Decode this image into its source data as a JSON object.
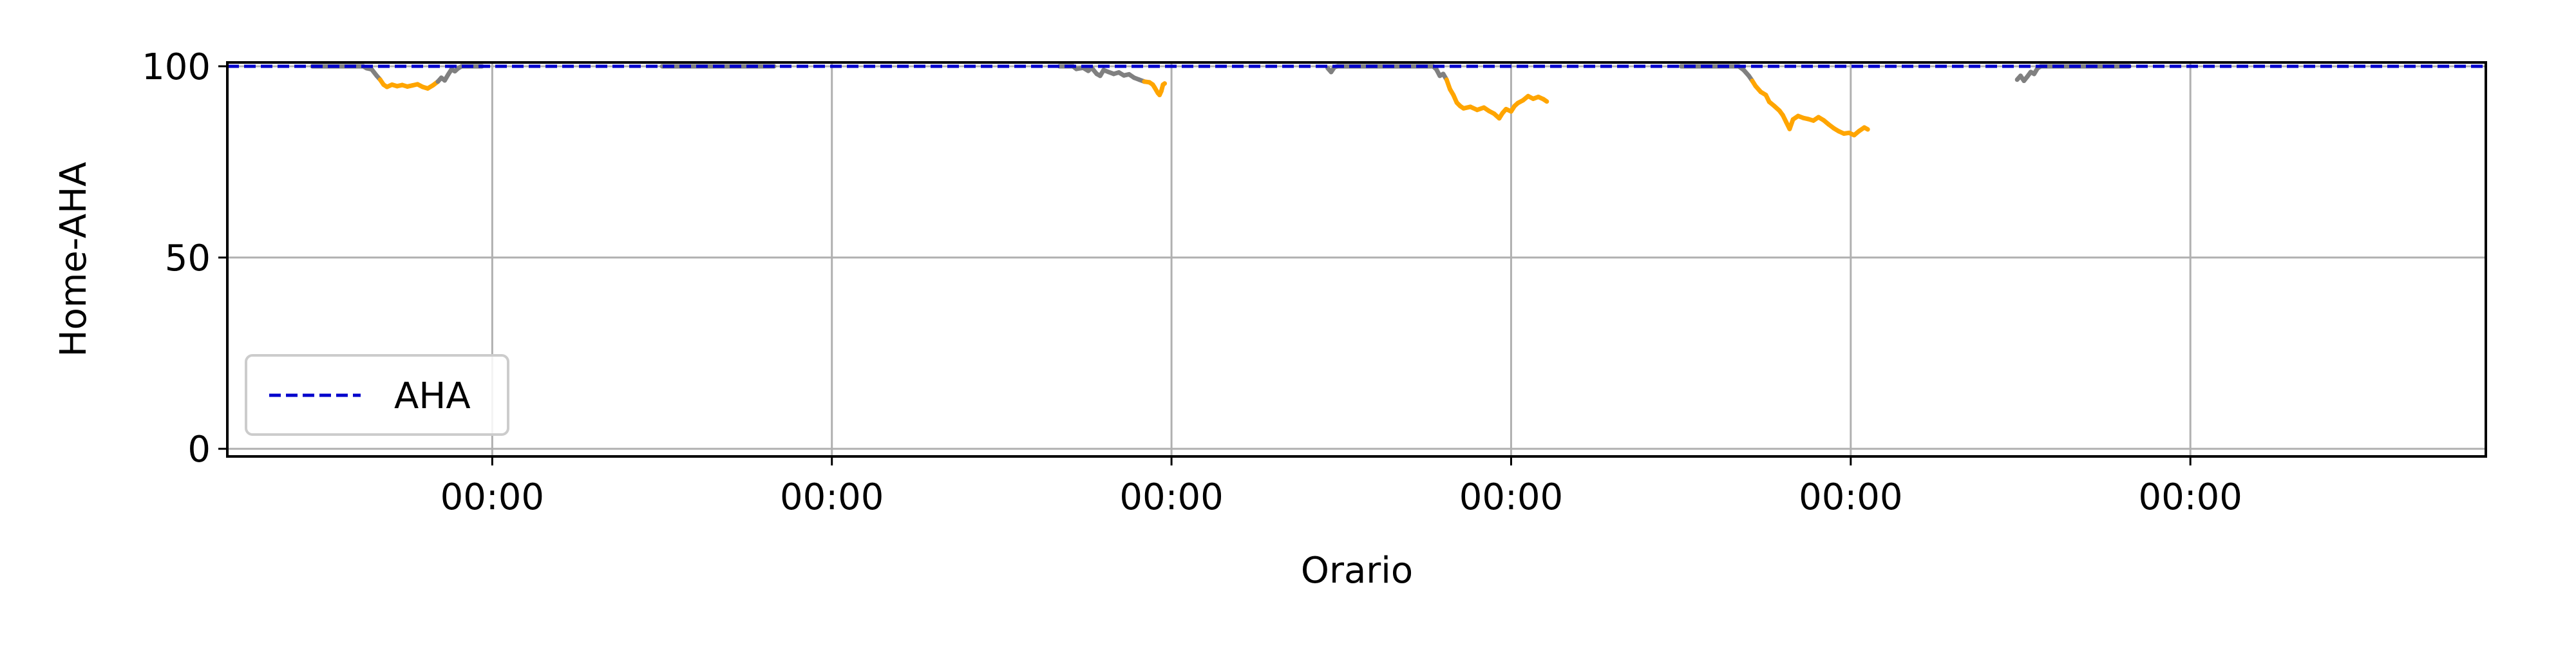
{
  "chart_data": {
    "type": "line",
    "title": "",
    "xlabel": "Orario",
    "ylabel": "Home-AHA",
    "ylim": [
      -2,
      101
    ],
    "xlim": [
      -0.78,
      5.87
    ],
    "yticks": [
      0,
      50,
      100
    ],
    "xticks": [
      0,
      1,
      2,
      3,
      4,
      5
    ],
    "xtick_labels": [
      "00:00",
      "00:00",
      "00:00",
      "00:00",
      "00:00",
      "00:00"
    ],
    "grid": true,
    "legend": {
      "location": "lower-left",
      "entries": [
        "AHA"
      ]
    },
    "colors": {
      "reference": "#0000cc",
      "above_threshold": "#808080",
      "below_threshold": "#ffa500",
      "grid": "#b0b0b0"
    },
    "reference_line": {
      "name": "AHA",
      "y": 100,
      "style": "dashed"
    },
    "color_threshold": 96,
    "series": [
      {
        "points": [
          [
            -0.53,
            100
          ],
          [
            -0.38,
            100
          ],
          [
            -0.37,
            99.5
          ],
          [
            -0.355,
            99.2
          ],
          [
            -0.34,
            97.5
          ],
          [
            -0.33,
            96.5
          ],
          [
            -0.32,
            95.2
          ],
          [
            -0.31,
            94.6
          ],
          [
            -0.295,
            95.2
          ],
          [
            -0.28,
            94.8
          ],
          [
            -0.265,
            95.1
          ],
          [
            -0.25,
            94.7
          ],
          [
            -0.235,
            95.0
          ],
          [
            -0.22,
            95.3
          ],
          [
            -0.205,
            94.6
          ],
          [
            -0.19,
            94.2
          ],
          [
            -0.175,
            95.0
          ],
          [
            -0.16,
            96.0
          ],
          [
            -0.15,
            97.0
          ],
          [
            -0.14,
            96.3
          ],
          [
            -0.13,
            97.8
          ],
          [
            -0.12,
            99.2
          ],
          [
            -0.11,
            98.7
          ],
          [
            -0.1,
            99.5
          ],
          [
            -0.09,
            100
          ],
          [
            -0.03,
            100
          ]
        ]
      },
      {
        "points": [
          [
            0.5,
            100
          ],
          [
            0.83,
            100
          ]
        ]
      },
      {
        "points": [
          [
            1.67,
            100
          ],
          [
            1.71,
            100
          ],
          [
            1.72,
            99.3
          ],
          [
            1.74,
            99.6
          ],
          [
            1.755,
            98.8
          ],
          [
            1.765,
            99.6
          ],
          [
            1.78,
            98.0
          ],
          [
            1.79,
            97.5
          ],
          [
            1.8,
            99.0
          ],
          [
            1.815,
            98.5
          ],
          [
            1.83,
            98.0
          ],
          [
            1.845,
            98.4
          ],
          [
            1.86,
            97.6
          ],
          [
            1.875,
            97.9
          ],
          [
            1.89,
            97.0
          ],
          [
            1.905,
            96.5
          ],
          [
            1.92,
            96.0
          ],
          [
            1.935,
            95.8
          ],
          [
            1.945,
            95.2
          ],
          [
            1.95,
            94.5
          ],
          [
            1.96,
            93.0
          ],
          [
            1.965,
            92.5
          ],
          [
            1.97,
            93.5
          ],
          [
            1.975,
            95.2
          ],
          [
            1.98,
            95.5
          ]
        ]
      },
      {
        "points": [
          [
            2.46,
            99.5
          ],
          [
            2.47,
            98.5
          ],
          [
            2.48,
            99.8
          ],
          [
            2.49,
            100
          ],
          [
            2.77,
            100
          ],
          [
            2.78,
            99.2
          ],
          [
            2.79,
            97.5
          ],
          [
            2.8,
            98.0
          ],
          [
            2.81,
            96.5
          ],
          [
            2.82,
            94.0
          ],
          [
            2.83,
            92.5
          ],
          [
            2.84,
            90.5
          ],
          [
            2.85,
            89.6
          ],
          [
            2.86,
            89.0
          ],
          [
            2.88,
            89.4
          ],
          [
            2.9,
            88.6
          ],
          [
            2.92,
            89.2
          ],
          [
            2.935,
            88.3
          ],
          [
            2.95,
            87.6
          ],
          [
            2.965,
            86.4
          ],
          [
            2.975,
            87.8
          ],
          [
            2.985,
            88.8
          ],
          [
            3.0,
            88.2
          ],
          [
            3.01,
            89.6
          ],
          [
            3.02,
            90.4
          ],
          [
            3.035,
            91.1
          ],
          [
            3.05,
            92.2
          ],
          [
            3.065,
            91.5
          ],
          [
            3.08,
            92.0
          ],
          [
            3.095,
            91.4
          ],
          [
            3.105,
            90.8
          ]
        ]
      },
      {
        "points": [
          [
            3.5,
            100
          ],
          [
            3.67,
            100
          ],
          [
            3.685,
            99.0
          ],
          [
            3.7,
            97.5
          ],
          [
            3.71,
            96.2
          ],
          [
            3.72,
            94.8
          ],
          [
            3.735,
            93.3
          ],
          [
            3.75,
            92.5
          ],
          [
            3.76,
            90.7
          ],
          [
            3.775,
            89.6
          ],
          [
            3.79,
            88.4
          ],
          [
            3.8,
            87.2
          ],
          [
            3.81,
            85.4
          ],
          [
            3.82,
            83.6
          ],
          [
            3.83,
            86.1
          ],
          [
            3.845,
            87.0
          ],
          [
            3.86,
            86.5
          ],
          [
            3.875,
            86.2
          ],
          [
            3.89,
            85.8
          ],
          [
            3.905,
            86.7
          ],
          [
            3.92,
            85.9
          ],
          [
            3.935,
            84.8
          ],
          [
            3.95,
            83.8
          ],
          [
            3.965,
            83.0
          ],
          [
            3.98,
            82.4
          ],
          [
            3.995,
            82.6
          ],
          [
            4.01,
            82.0
          ],
          [
            4.025,
            83.1
          ],
          [
            4.04,
            84.0
          ],
          [
            4.05,
            83.5
          ]
        ]
      },
      {
        "points": [
          [
            4.49,
            96.5
          ],
          [
            4.5,
            97.5
          ],
          [
            4.51,
            96.2
          ],
          [
            4.52,
            97.3
          ],
          [
            4.53,
            98.5
          ],
          [
            4.54,
            98.0
          ],
          [
            4.55,
            99.5
          ],
          [
            4.56,
            100
          ],
          [
            4.82,
            100
          ]
        ]
      }
    ]
  }
}
